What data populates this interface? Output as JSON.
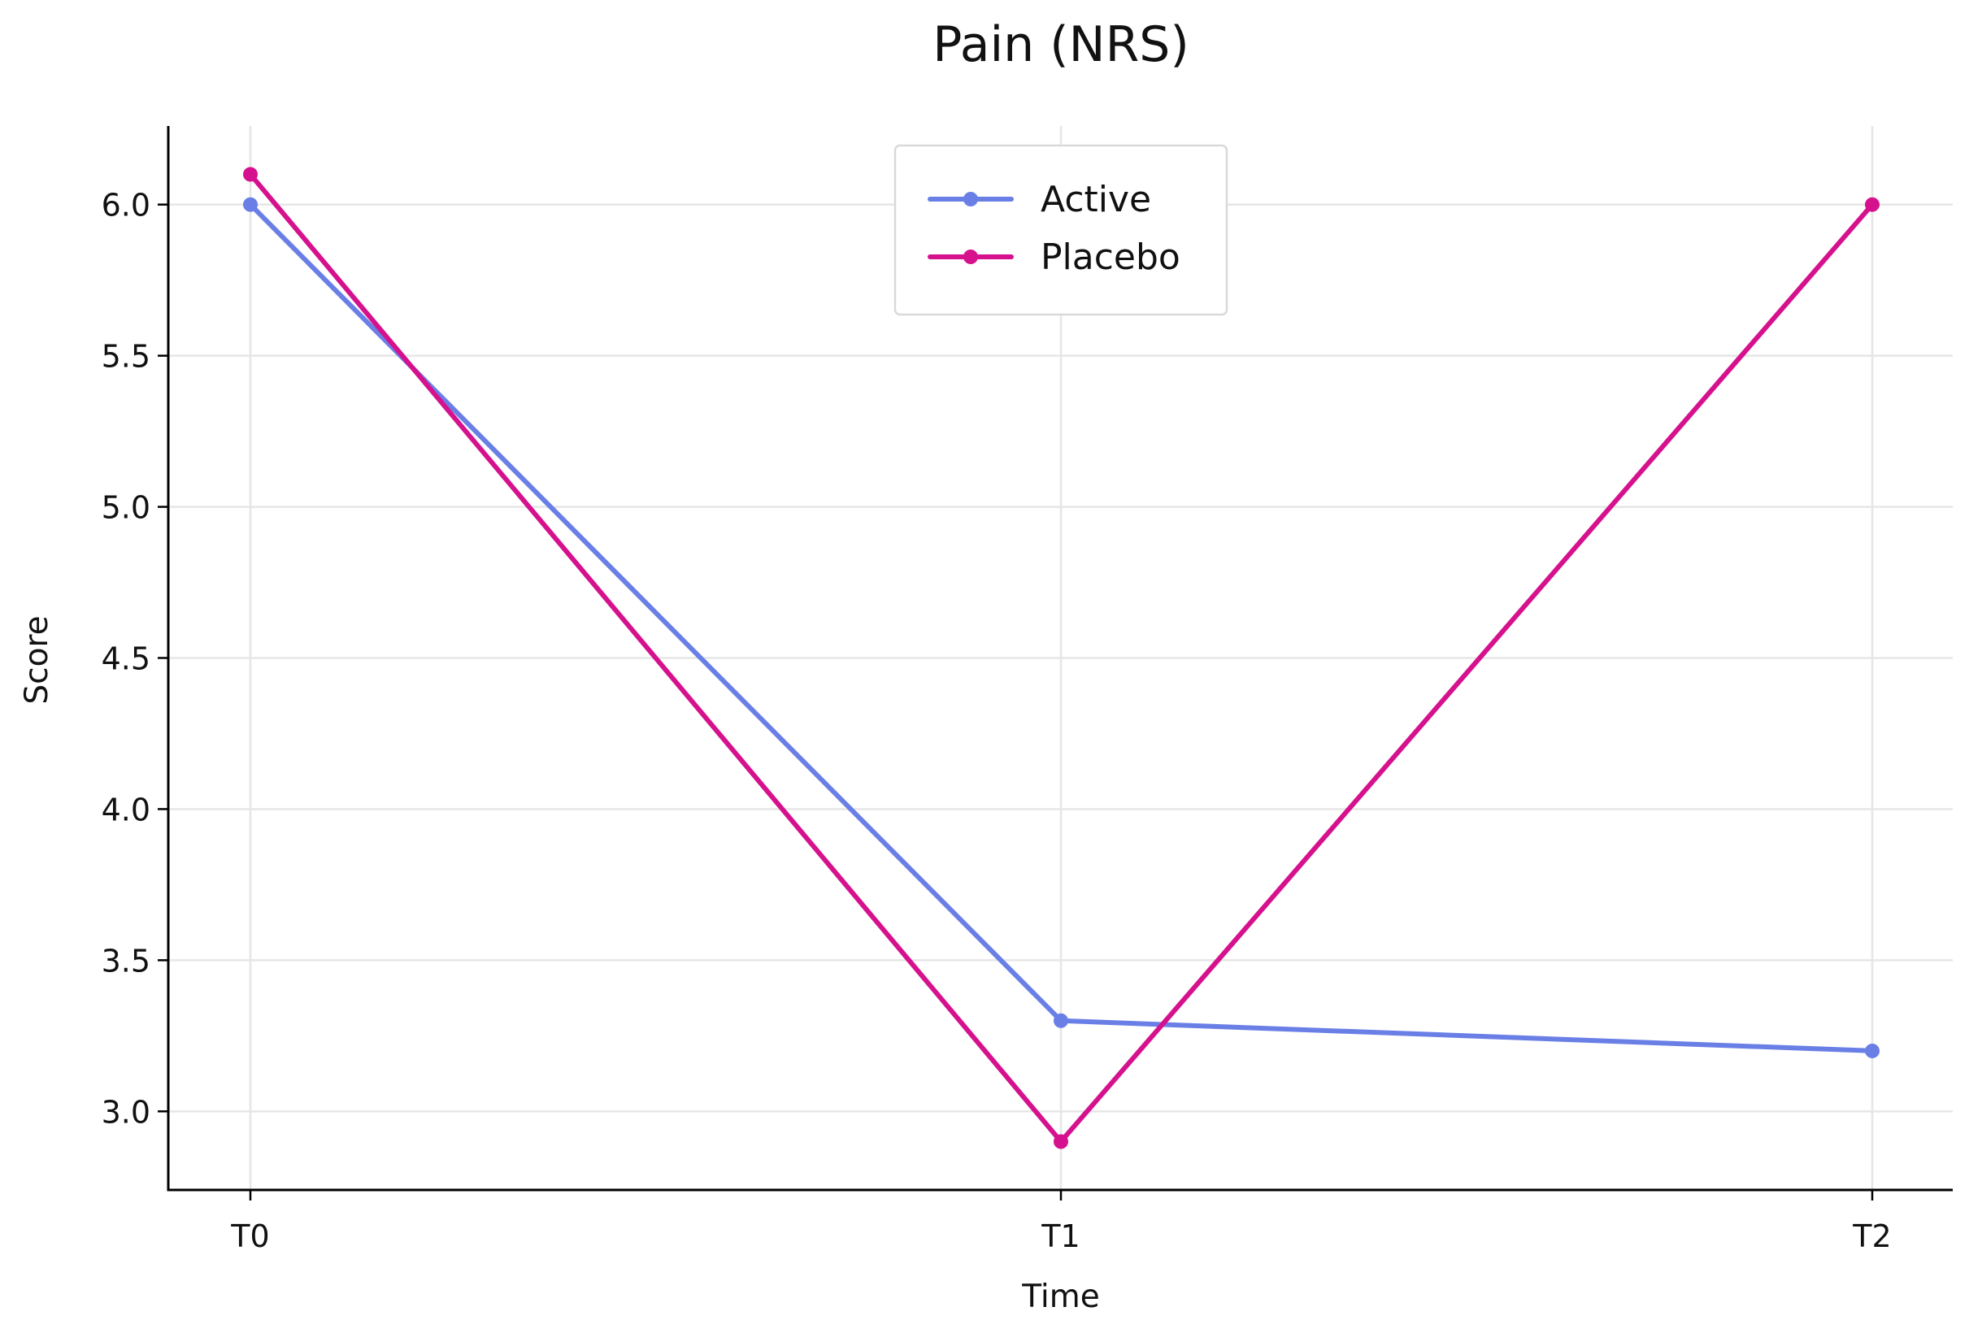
{
  "chart_data": {
    "type": "line",
    "title": "Pain (NRS)",
    "xlabel": "Time",
    "ylabel": "Score",
    "categories": [
      "T0",
      "T1",
      "T2"
    ],
    "ylim": [
      2.74,
      6.26
    ],
    "yticks": [
      "3.0",
      "3.5",
      "4.0",
      "4.5",
      "5.0",
      "5.5",
      "6.0"
    ],
    "grid": true,
    "legend_position": "top-center",
    "series": [
      {
        "name": "Active",
        "values": [
          6.0,
          3.3,
          3.2
        ],
        "color": "#6a7fe6"
      },
      {
        "name": "Placebo",
        "values": [
          6.1,
          2.9,
          6.0
        ],
        "color": "#d6118e"
      }
    ]
  }
}
